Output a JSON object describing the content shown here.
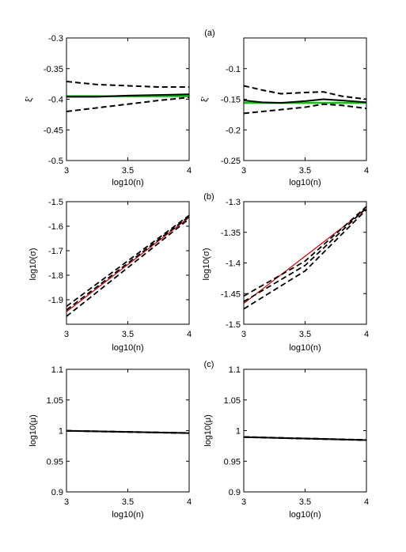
{
  "panel_labels": [
    "(a)",
    "(b)",
    "(c)"
  ],
  "chart_data": [
    {
      "type": "line",
      "panel": "(a)",
      "xlabel": "log10(n)",
      "ylabel": "ξ'",
      "xlim": [
        3,
        4
      ],
      "ylim": [
        -0.5,
        -0.3
      ],
      "xticks": [
        3,
        3.5,
        4
      ],
      "yticks": [
        -0.5,
        -0.45,
        -0.4,
        -0.35,
        -0.3
      ],
      "xtick_labels": [
        "3",
        "3.5",
        "4"
      ],
      "ytick_labels": [
        "-0.5",
        "-0.45",
        "-0.4",
        "-0.35",
        "-0.3"
      ],
      "series": [
        {
          "color": "#00cc00",
          "style": "solid",
          "width": 2.5,
          "x": [
            3,
            4
          ],
          "y": [
            -0.395,
            -0.395
          ]
        },
        {
          "color": "#000000",
          "style": "solid",
          "width": 2,
          "x": [
            3,
            3.25,
            3.5,
            3.75,
            4
          ],
          "y": [
            -0.396,
            -0.396,
            -0.394,
            -0.393,
            -0.392
          ]
        },
        {
          "color": "#000000",
          "style": "dashed",
          "width": 2,
          "x": [
            3,
            3.1,
            3.25,
            3.5,
            3.75,
            4
          ],
          "y": [
            -0.371,
            -0.373,
            -0.376,
            -0.378,
            -0.38,
            -0.38
          ]
        },
        {
          "color": "#000000",
          "style": "dashed",
          "width": 2,
          "x": [
            3,
            3.25,
            3.5,
            3.75,
            4
          ],
          "y": [
            -0.42,
            -0.414,
            -0.408,
            -0.402,
            -0.397
          ]
        }
      ]
    },
    {
      "type": "line",
      "panel": "(a)",
      "xlabel": "log10(n)",
      "ylabel": "ξ'",
      "xlim": [
        3,
        4
      ],
      "ylim": [
        -0.25,
        -0.05
      ],
      "xticks": [
        3,
        3.5,
        4
      ],
      "yticks": [
        -0.25,
        -0.2,
        -0.15,
        -0.1
      ],
      "xtick_labels": [
        "3",
        "3.5",
        "4"
      ],
      "ytick_labels": [
        "-0.25",
        "-0.2",
        "-0.15",
        "-0.1"
      ],
      "series": [
        {
          "color": "#00cc00",
          "style": "solid",
          "width": 2.5,
          "x": [
            3,
            4
          ],
          "y": [
            -0.156,
            -0.156
          ]
        },
        {
          "color": "#000000",
          "style": "solid",
          "width": 2,
          "x": [
            3,
            3.15,
            3.3,
            3.5,
            3.65,
            3.8,
            4
          ],
          "y": [
            -0.152,
            -0.155,
            -0.156,
            -0.153,
            -0.15,
            -0.152,
            -0.155
          ]
        },
        {
          "color": "#000000",
          "style": "dashed",
          "width": 2,
          "x": [
            3,
            3.15,
            3.3,
            3.5,
            3.65,
            3.8,
            4
          ],
          "y": [
            -0.128,
            -0.135,
            -0.141,
            -0.139,
            -0.138,
            -0.145,
            -0.15
          ]
        },
        {
          "color": "#000000",
          "style": "dashed",
          "width": 2,
          "x": [
            3,
            3.15,
            3.3,
            3.5,
            3.65,
            3.8,
            4
          ],
          "y": [
            -0.173,
            -0.17,
            -0.167,
            -0.163,
            -0.158,
            -0.16,
            -0.165
          ]
        }
      ]
    },
    {
      "type": "line",
      "panel": "(b)",
      "xlabel": "log10(n)",
      "ylabel": "log10(σ)",
      "xlim": [
        3,
        4
      ],
      "ylim": [
        -2.0,
        -1.5
      ],
      "xticks": [
        3,
        3.5,
        4
      ],
      "yticks": [
        -1.9,
        -1.8,
        -1.7,
        -1.6,
        -1.5
      ],
      "xtick_labels": [
        "3",
        "3.5",
        "4"
      ],
      "ytick_labels": [
        "-1.9",
        "-1.8",
        "-1.7",
        "-1.6",
        "-1.5"
      ],
      "series": [
        {
          "color": "#cc0000",
          "style": "solid",
          "width": 1.2,
          "x": [
            3,
            4
          ],
          "y": [
            -1.949,
            -1.564
          ]
        },
        {
          "color": "#000000",
          "style": "dashed",
          "width": 1.8,
          "x": [
            3,
            4
          ],
          "y": [
            -1.927,
            -1.556
          ]
        },
        {
          "color": "#000000",
          "style": "dashed",
          "width": 1.8,
          "x": [
            3,
            4
          ],
          "y": [
            -1.942,
            -1.56
          ]
        },
        {
          "color": "#000000",
          "style": "dashed",
          "width": 1.8,
          "x": [
            3,
            4
          ],
          "y": [
            -1.968,
            -1.57
          ]
        }
      ]
    },
    {
      "type": "line",
      "panel": "(b)",
      "xlabel": "log10(n)",
      "ylabel": "log10(σ)",
      "xlim": [
        3,
        4
      ],
      "ylim": [
        -1.5,
        -1.3
      ],
      "xticks": [
        3,
        3.5,
        4
      ],
      "yticks": [
        -1.5,
        -1.45,
        -1.4,
        -1.35,
        -1.3
      ],
      "xtick_labels": [
        "3",
        "3.5",
        "4"
      ],
      "ytick_labels": [
        "-1.5",
        "-1.45",
        "-1.4",
        "-1.35",
        "-1.3"
      ],
      "series": [
        {
          "color": "#cc0000",
          "style": "solid",
          "width": 1.2,
          "x": [
            3,
            4
          ],
          "y": [
            -1.466,
            -1.312
          ]
        },
        {
          "color": "#000000",
          "style": "dashed",
          "width": 1.8,
          "x": [
            3,
            3.5,
            4
          ],
          "y": [
            -1.454,
            -1.397,
            -1.308
          ]
        },
        {
          "color": "#000000",
          "style": "dashed",
          "width": 1.8,
          "x": [
            3,
            3.5,
            4
          ],
          "y": [
            -1.463,
            -1.404,
            -1.31
          ]
        },
        {
          "color": "#000000",
          "style": "dashed",
          "width": 1.8,
          "x": [
            3,
            3.5,
            4
          ],
          "y": [
            -1.475,
            -1.413,
            -1.313
          ]
        }
      ]
    },
    {
      "type": "line",
      "panel": "(c)",
      "xlabel": "log10(n)",
      "ylabel": "log10(μ)",
      "xlim": [
        3,
        4
      ],
      "ylim": [
        0.9,
        1.1
      ],
      "xticks": [
        3,
        3.5,
        4
      ],
      "yticks": [
        0.9,
        0.95,
        1,
        1.05,
        1.1
      ],
      "xtick_labels": [
        "3",
        "3.5",
        "4"
      ],
      "ytick_labels": [
        "0.9",
        "0.95",
        "1",
        "1.05",
        "1.1"
      ],
      "series": [
        {
          "color": "#000000",
          "style": "dashed",
          "width": 2,
          "x": [
            3,
            4
          ],
          "y": [
            0.9998,
            0.9962
          ]
        },
        {
          "color": "#000000",
          "style": "solid",
          "width": 2,
          "x": [
            3,
            4
          ],
          "y": [
            0.9997,
            0.996
          ]
        },
        {
          "color": "#000000",
          "style": "dashed",
          "width": 2,
          "x": [
            3,
            4
          ],
          "y": [
            0.9996,
            0.9958
          ]
        }
      ]
    },
    {
      "type": "line",
      "panel": "(c)",
      "xlabel": "log10(n)",
      "ylabel": "log10(μ)",
      "xlim": [
        3,
        4
      ],
      "ylim": [
        0.9,
        1.1
      ],
      "xticks": [
        3,
        3.5,
        4
      ],
      "yticks": [
        0.9,
        0.95,
        1,
        1.05,
        1.1
      ],
      "xtick_labels": [
        "3",
        "3.5",
        "4"
      ],
      "ytick_labels": [
        "0.9",
        "0.95",
        "1",
        "1.05",
        "1.1"
      ],
      "series": [
        {
          "color": "#000000",
          "style": "dashed",
          "width": 2,
          "x": [
            3,
            4
          ],
          "y": [
            0.9897,
            0.9848
          ]
        },
        {
          "color": "#000000",
          "style": "solid",
          "width": 2,
          "x": [
            3,
            4
          ],
          "y": [
            0.9895,
            0.9846
          ]
        },
        {
          "color": "#000000",
          "style": "dashed",
          "width": 2,
          "x": [
            3,
            4
          ],
          "y": [
            0.9893,
            0.9844
          ]
        }
      ]
    }
  ]
}
